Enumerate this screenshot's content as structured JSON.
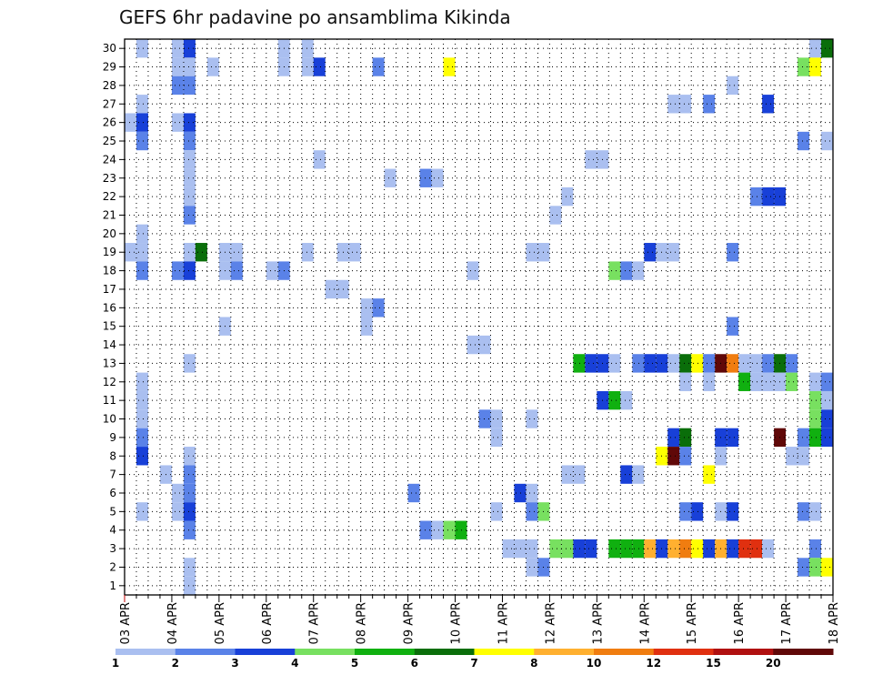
{
  "chart_data": {
    "type": "heatmap",
    "title": "GEFS 6hr padavine po ansamblima Kikinda",
    "xlabel": "",
    "ylabel": "",
    "x_tick_labels": [
      "03 APR",
      "04 APR",
      "05 APR",
      "06 APR",
      "07 APR",
      "08 APR",
      "09 APR",
      "10 APR",
      "11 APR",
      "12 APR",
      "13 APR",
      "14 APR",
      "15 APR",
      "16 APR",
      "17 APR",
      "18 APR"
    ],
    "y_tick_labels": [
      "1",
      "2",
      "3",
      "4",
      "5",
      "6",
      "7",
      "8",
      "9",
      "10",
      "11",
      "12",
      "13",
      "14",
      "15",
      "16",
      "17",
      "18",
      "19",
      "20",
      "21",
      "22",
      "23",
      "24",
      "25",
      "26",
      "27",
      "28",
      "29",
      "30"
    ],
    "xlim": [
      0,
      60
    ],
    "ylim": [
      0.5,
      30.5
    ],
    "time_step_hours": 6,
    "grid": true,
    "legend": {
      "placement": "bottom",
      "labels": [
        "1",
        "2",
        "3",
        "4",
        "5",
        "6",
        "7",
        "8",
        "10",
        "12",
        "15",
        "20"
      ],
      "bins": [
        {
          "from": 1,
          "to": 2,
          "color": "#aabff0"
        },
        {
          "from": 2,
          "to": 3,
          "color": "#5a82e8"
        },
        {
          "from": 3,
          "to": 4,
          "color": "#1840d8"
        },
        {
          "from": 4,
          "to": 5,
          "color": "#78e060"
        },
        {
          "from": 5,
          "to": 6,
          "color": "#10b010"
        },
        {
          "from": 6,
          "to": 7,
          "color": "#0a6e0a"
        },
        {
          "from": 7,
          "to": 8,
          "color": "#ffff00"
        },
        {
          "from": 8,
          "to": 10,
          "color": "#ffb030"
        },
        {
          "from": 10,
          "to": 12,
          "color": "#f07d10"
        },
        {
          "from": 12,
          "to": 15,
          "color": "#e03010"
        },
        {
          "from": 15,
          "to": 20,
          "color": "#b01010"
        },
        {
          "from": 20,
          "to": 30,
          "color": "#600808"
        }
      ]
    },
    "cells": [
      [
        1,
        30,
        1
      ],
      [
        5,
        30,
        3
      ],
      [
        4,
        30,
        1
      ],
      [
        13,
        30,
        1
      ],
      [
        15,
        30,
        1
      ],
      [
        58,
        30,
        1
      ],
      [
        59,
        30,
        6
      ],
      [
        4,
        29,
        1
      ],
      [
        5,
        29,
        1
      ],
      [
        7,
        29,
        1
      ],
      [
        13,
        29,
        1
      ],
      [
        15,
        29,
        1
      ],
      [
        16,
        29,
        3
      ],
      [
        21,
        29,
        2
      ],
      [
        27,
        29,
        7
      ],
      [
        57,
        29,
        4
      ],
      [
        58,
        29,
        7
      ],
      [
        4,
        28,
        2
      ],
      [
        5,
        28,
        2
      ],
      [
        51,
        28,
        1
      ],
      [
        1,
        27,
        1
      ],
      [
        46,
        27,
        1
      ],
      [
        47,
        27,
        1
      ],
      [
        49,
        27,
        2
      ],
      [
        54,
        27,
        3
      ],
      [
        0,
        26,
        1
      ],
      [
        1,
        26,
        3
      ],
      [
        4,
        26,
        1
      ],
      [
        5,
        26,
        3
      ],
      [
        1,
        25,
        2
      ],
      [
        5,
        25,
        2
      ],
      [
        57,
        25,
        2
      ],
      [
        59,
        25,
        1
      ],
      [
        5,
        24,
        1
      ],
      [
        16,
        24,
        1
      ],
      [
        39,
        24,
        1
      ],
      [
        40,
        24,
        1
      ],
      [
        5,
        23,
        1
      ],
      [
        22,
        23,
        1
      ],
      [
        25,
        23,
        2
      ],
      [
        26,
        23,
        1
      ],
      [
        5,
        22,
        1
      ],
      [
        37,
        22,
        1
      ],
      [
        53,
        22,
        2
      ],
      [
        54,
        22,
        3
      ],
      [
        55,
        22,
        3
      ],
      [
        5,
        21,
        2
      ],
      [
        36,
        21,
        1
      ],
      [
        1,
        20,
        1
      ],
      [
        0,
        19,
        1
      ],
      [
        1,
        19,
        1
      ],
      [
        5,
        19,
        1
      ],
      [
        6,
        19,
        6
      ],
      [
        8,
        19,
        1
      ],
      [
        9,
        19,
        1
      ],
      [
        15,
        19,
        1
      ],
      [
        18,
        19,
        1
      ],
      [
        19,
        19,
        1
      ],
      [
        34,
        19,
        1
      ],
      [
        35,
        19,
        1
      ],
      [
        44,
        19,
        3
      ],
      [
        45,
        19,
        1
      ],
      [
        46,
        19,
        1
      ],
      [
        51,
        19,
        2
      ],
      [
        1,
        18,
        2
      ],
      [
        4,
        18,
        2
      ],
      [
        5,
        18,
        3
      ],
      [
        8,
        18,
        1
      ],
      [
        9,
        18,
        2
      ],
      [
        12,
        18,
        1
      ],
      [
        13,
        18,
        2
      ],
      [
        29,
        18,
        1
      ],
      [
        41,
        18,
        4
      ],
      [
        42,
        18,
        2
      ],
      [
        43,
        18,
        1
      ],
      [
        17,
        17,
        1
      ],
      [
        18,
        17,
        1
      ],
      [
        20,
        16,
        1
      ],
      [
        21,
        16,
        2
      ],
      [
        8,
        15,
        1
      ],
      [
        20,
        15,
        1
      ],
      [
        51,
        15,
        2
      ],
      [
        29,
        14,
        1
      ],
      [
        30,
        14,
        1
      ],
      [
        5,
        13,
        1
      ],
      [
        38,
        13,
        5
      ],
      [
        39,
        13,
        3
      ],
      [
        40,
        13,
        3
      ],
      [
        41,
        13,
        1
      ],
      [
        43,
        13,
        2
      ],
      [
        44,
        13,
        3
      ],
      [
        45,
        13,
        3
      ],
      [
        46,
        13,
        1
      ],
      [
        47,
        13,
        6
      ],
      [
        48,
        13,
        7
      ],
      [
        49,
        13,
        2
      ],
      [
        50,
        13,
        12
      ],
      [
        51,
        13,
        9
      ],
      [
        52,
        13,
        1
      ],
      [
        53,
        13,
        1
      ],
      [
        54,
        13,
        2
      ],
      [
        55,
        13,
        6
      ],
      [
        56,
        13,
        2
      ],
      [
        1,
        12,
        1
      ],
      [
        47,
        12,
        1
      ],
      [
        49,
        12,
        1
      ],
      [
        52,
        12,
        5
      ],
      [
        53,
        12,
        1
      ],
      [
        54,
        12,
        1
      ],
      [
        55,
        12,
        1
      ],
      [
        56,
        12,
        4
      ],
      [
        58,
        12,
        1
      ],
      [
        59,
        12,
        2
      ],
      [
        1,
        11,
        1
      ],
      [
        40,
        11,
        3
      ],
      [
        41,
        11,
        5
      ],
      [
        42,
        11,
        1
      ],
      [
        58,
        11,
        4
      ],
      [
        59,
        11,
        1
      ],
      [
        1,
        10,
        1
      ],
      [
        30,
        10,
        2
      ],
      [
        31,
        10,
        1
      ],
      [
        34,
        10,
        1
      ],
      [
        58,
        10,
        4
      ],
      [
        59,
        10,
        3
      ],
      [
        60,
        10,
        2
      ],
      [
        1,
        9,
        2
      ],
      [
        31,
        9,
        1
      ],
      [
        46,
        9,
        3
      ],
      [
        47,
        9,
        6
      ],
      [
        50,
        9,
        3
      ],
      [
        51,
        9,
        3
      ],
      [
        55,
        9,
        12
      ],
      [
        57,
        9,
        2
      ],
      [
        58,
        9,
        5
      ],
      [
        59,
        9,
        3
      ],
      [
        1,
        8,
        3
      ],
      [
        5,
        8,
        1
      ],
      [
        45,
        8,
        7
      ],
      [
        46,
        8,
        12
      ],
      [
        47,
        8,
        2
      ],
      [
        50,
        8,
        1
      ],
      [
        56,
        8,
        1
      ],
      [
        57,
        8,
        1
      ],
      [
        3,
        7,
        1
      ],
      [
        5,
        7,
        2
      ],
      [
        37,
        7,
        1
      ],
      [
        38,
        7,
        1
      ],
      [
        42,
        7,
        3
      ],
      [
        43,
        7,
        1
      ],
      [
        49,
        7,
        7
      ],
      [
        4,
        6,
        1
      ],
      [
        5,
        6,
        2
      ],
      [
        24,
        6,
        2
      ],
      [
        33,
        6,
        3
      ],
      [
        34,
        6,
        1
      ],
      [
        1,
        5,
        1
      ],
      [
        4,
        5,
        1
      ],
      [
        5,
        5,
        3
      ],
      [
        31,
        5,
        1
      ],
      [
        34,
        5,
        2
      ],
      [
        35,
        5,
        4
      ],
      [
        47,
        5,
        2
      ],
      [
        48,
        5,
        3
      ],
      [
        50,
        5,
        1
      ],
      [
        51,
        5,
        3
      ],
      [
        57,
        5,
        2
      ],
      [
        58,
        5,
        1
      ],
      [
        5,
        4,
        2
      ],
      [
        25,
        4,
        2
      ],
      [
        26,
        4,
        1
      ],
      [
        27,
        4,
        4
      ],
      [
        28,
        4,
        5
      ],
      [
        32,
        3,
        1
      ],
      [
        33,
        3,
        1
      ],
      [
        34,
        3,
        1
      ],
      [
        36,
        3,
        4
      ],
      [
        37,
        3,
        4
      ],
      [
        38,
        3,
        3
      ],
      [
        39,
        3,
        3
      ],
      [
        41,
        3,
        5
      ],
      [
        42,
        3,
        5
      ],
      [
        43,
        3,
        5
      ],
      [
        44,
        3,
        8
      ],
      [
        45,
        3,
        3
      ],
      [
        46,
        3,
        8
      ],
      [
        47,
        3,
        9
      ],
      [
        48,
        3,
        7
      ],
      [
        49,
        3,
        3
      ],
      [
        50,
        3,
        8
      ],
      [
        51,
        3,
        3
      ],
      [
        52,
        3,
        10
      ],
      [
        53,
        3,
        10
      ],
      [
        54,
        3,
        1
      ],
      [
        58,
        3,
        2
      ],
      [
        5,
        2,
        1
      ],
      [
        34,
        2,
        1
      ],
      [
        35,
        2,
        2
      ],
      [
        57,
        2,
        2
      ],
      [
        58,
        2,
        4
      ],
      [
        59,
        2,
        7
      ],
      [
        5,
        1,
        1
      ]
    ]
  }
}
